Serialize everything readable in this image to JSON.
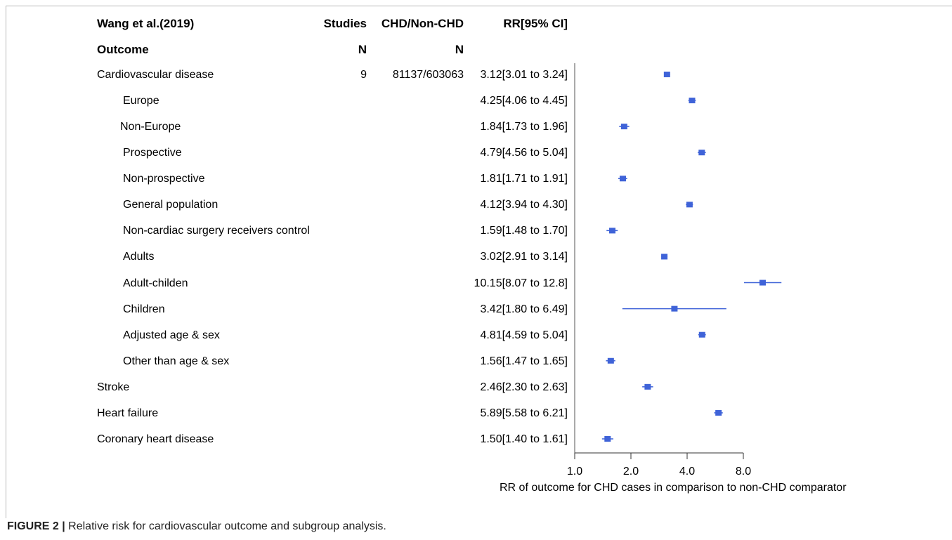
{
  "header": {
    "title": "Wang et al.(2019)",
    "outcome": "Outcome",
    "studies": "Studies",
    "studies_n": "N",
    "chd": "CHD/Non-CHD",
    "chd_n": "N",
    "rr": "RR[95% CI]"
  },
  "caption": {
    "label": "FIGURE 2 |",
    "text": " Relative risk for cardiovascular outcome and subgroup analysis."
  },
  "chart_data": {
    "type": "forest",
    "xscale": "log",
    "xlim": [
      1.0,
      8.0
    ],
    "xticks": [
      1.0,
      2.0,
      4.0,
      8.0
    ],
    "tick_labels": [
      "1.0",
      "2.0",
      "4.0",
      "8.0"
    ],
    "xlabel": "RR of outcome for CHD cases in comparison to non-CHD comparator",
    "marker_color": "#3f63d8",
    "rows": [
      {
        "label": "Cardiovascular disease",
        "indent": 0,
        "studies": "9",
        "n": "81137/603063",
        "rr_text": "3.12[3.01 to 3.24]",
        "rr": 3.12,
        "lo": 3.01,
        "hi": 3.24
      },
      {
        "label": "Europe",
        "indent": 1,
        "studies": "",
        "n": "",
        "rr_text": "4.25[4.06 to 4.45]",
        "rr": 4.25,
        "lo": 4.06,
        "hi": 4.45
      },
      {
        "label": "Non-Europe",
        "indent": 1,
        "studies": "",
        "n": "",
        "rr_text": "1.84[1.73 to 1.96]",
        "rr": 1.84,
        "lo": 1.73,
        "hi": 1.96
      },
      {
        "label": "Prospective",
        "indent": 1,
        "studies": "",
        "n": "",
        "rr_text": "4.79[4.56 to 5.04]",
        "rr": 4.79,
        "lo": 4.56,
        "hi": 5.04
      },
      {
        "label": "Non-prospective",
        "indent": 1,
        "studies": "",
        "n": "",
        "rr_text": "1.81[1.71 to 1.91]",
        "rr": 1.81,
        "lo": 1.71,
        "hi": 1.91
      },
      {
        "label": "General population",
        "indent": 1,
        "studies": "",
        "n": "",
        "rr_text": "4.12[3.94 to 4.30]",
        "rr": 4.12,
        "lo": 3.94,
        "hi": 4.3
      },
      {
        "label": "Non-cardiac surgery receivers control",
        "indent": 1,
        "studies": "",
        "n": "",
        "rr_text": "1.59[1.48 to 1.70]",
        "rr": 1.59,
        "lo": 1.48,
        "hi": 1.7
      },
      {
        "label": "Adults",
        "indent": 1,
        "studies": "",
        "n": "",
        "rr_text": "3.02[2.91 to 3.14]",
        "rr": 3.02,
        "lo": 2.91,
        "hi": 3.14
      },
      {
        "label": "Adult-childen",
        "indent": 1,
        "studies": "",
        "n": "",
        "rr_text": "10.15[8.07 to 12.8]",
        "rr": 10.15,
        "lo": 8.07,
        "hi": 12.8
      },
      {
        "label": "Children",
        "indent": 1,
        "studies": "",
        "n": "",
        "rr_text": "3.42[1.80 to 6.49]",
        "rr": 3.42,
        "lo": 1.8,
        "hi": 6.49
      },
      {
        "label": "Adjusted age & sex",
        "indent": 1,
        "studies": "",
        "n": "",
        "rr_text": "4.81[4.59 to 5.04]",
        "rr": 4.81,
        "lo": 4.59,
        "hi": 5.04
      },
      {
        "label": "Other than age & sex",
        "indent": 1,
        "studies": "",
        "n": "",
        "rr_text": "1.56[1.47 to 1.65]",
        "rr": 1.56,
        "lo": 1.47,
        "hi": 1.65
      },
      {
        "label": "Stroke",
        "indent": 0,
        "studies": "",
        "n": "",
        "rr_text": "2.46[2.30 to 2.63]",
        "rr": 2.46,
        "lo": 2.3,
        "hi": 2.63
      },
      {
        "label": "Heart failure",
        "indent": 0,
        "studies": "",
        "n": "",
        "rr_text": "5.89[5.58 to 6.21]",
        "rr": 5.89,
        "lo": 5.58,
        "hi": 6.21
      },
      {
        "label": "Coronary heart disease",
        "indent": 0,
        "studies": "",
        "n": "",
        "rr_text": "1.50[1.40 to 1.61]",
        "rr": 1.5,
        "lo": 1.4,
        "hi": 1.61
      }
    ]
  }
}
